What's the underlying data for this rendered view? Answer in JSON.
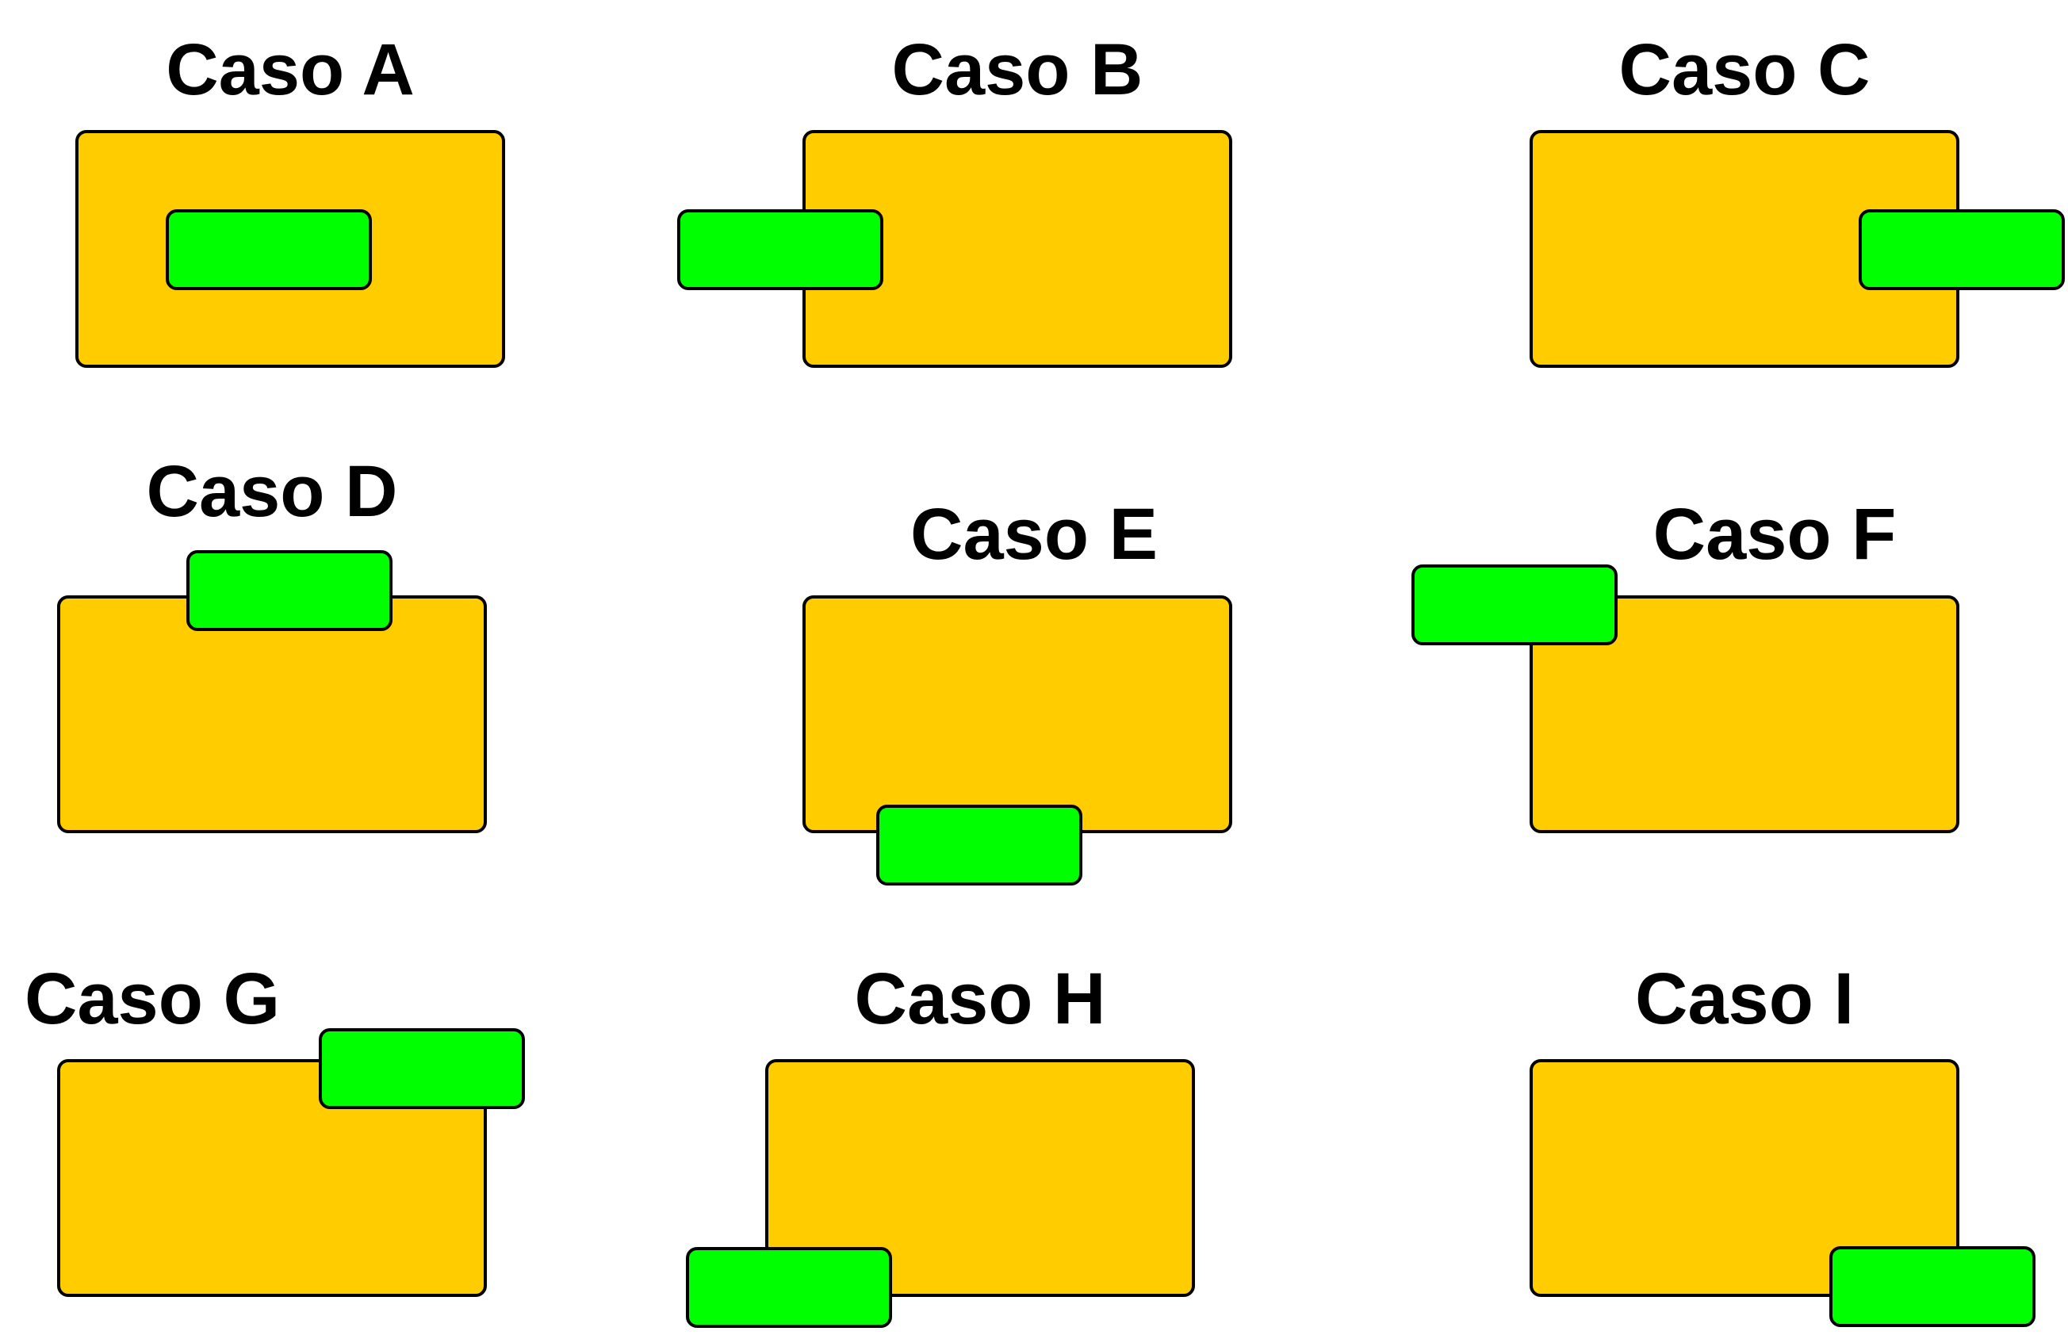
{
  "colors": {
    "container": "#FFCC00",
    "inner": "#00FF00",
    "stroke": "#000000"
  },
  "cases": [
    {
      "id": "A",
      "title": "Caso A",
      "relation": "inside"
    },
    {
      "id": "B",
      "title": "Caso B",
      "relation": "left"
    },
    {
      "id": "C",
      "title": "Caso C",
      "relation": "right"
    },
    {
      "id": "D",
      "title": "Caso D",
      "relation": "top"
    },
    {
      "id": "E",
      "title": "Caso E",
      "relation": "bottom"
    },
    {
      "id": "F",
      "title": "Caso F",
      "relation": "top-left"
    },
    {
      "id": "G",
      "title": "Caso G",
      "relation": "top-right"
    },
    {
      "id": "H",
      "title": "Caso H",
      "relation": "bottom-left"
    },
    {
      "id": "I",
      "title": "Caso I",
      "relation": "bottom-right"
    }
  ]
}
